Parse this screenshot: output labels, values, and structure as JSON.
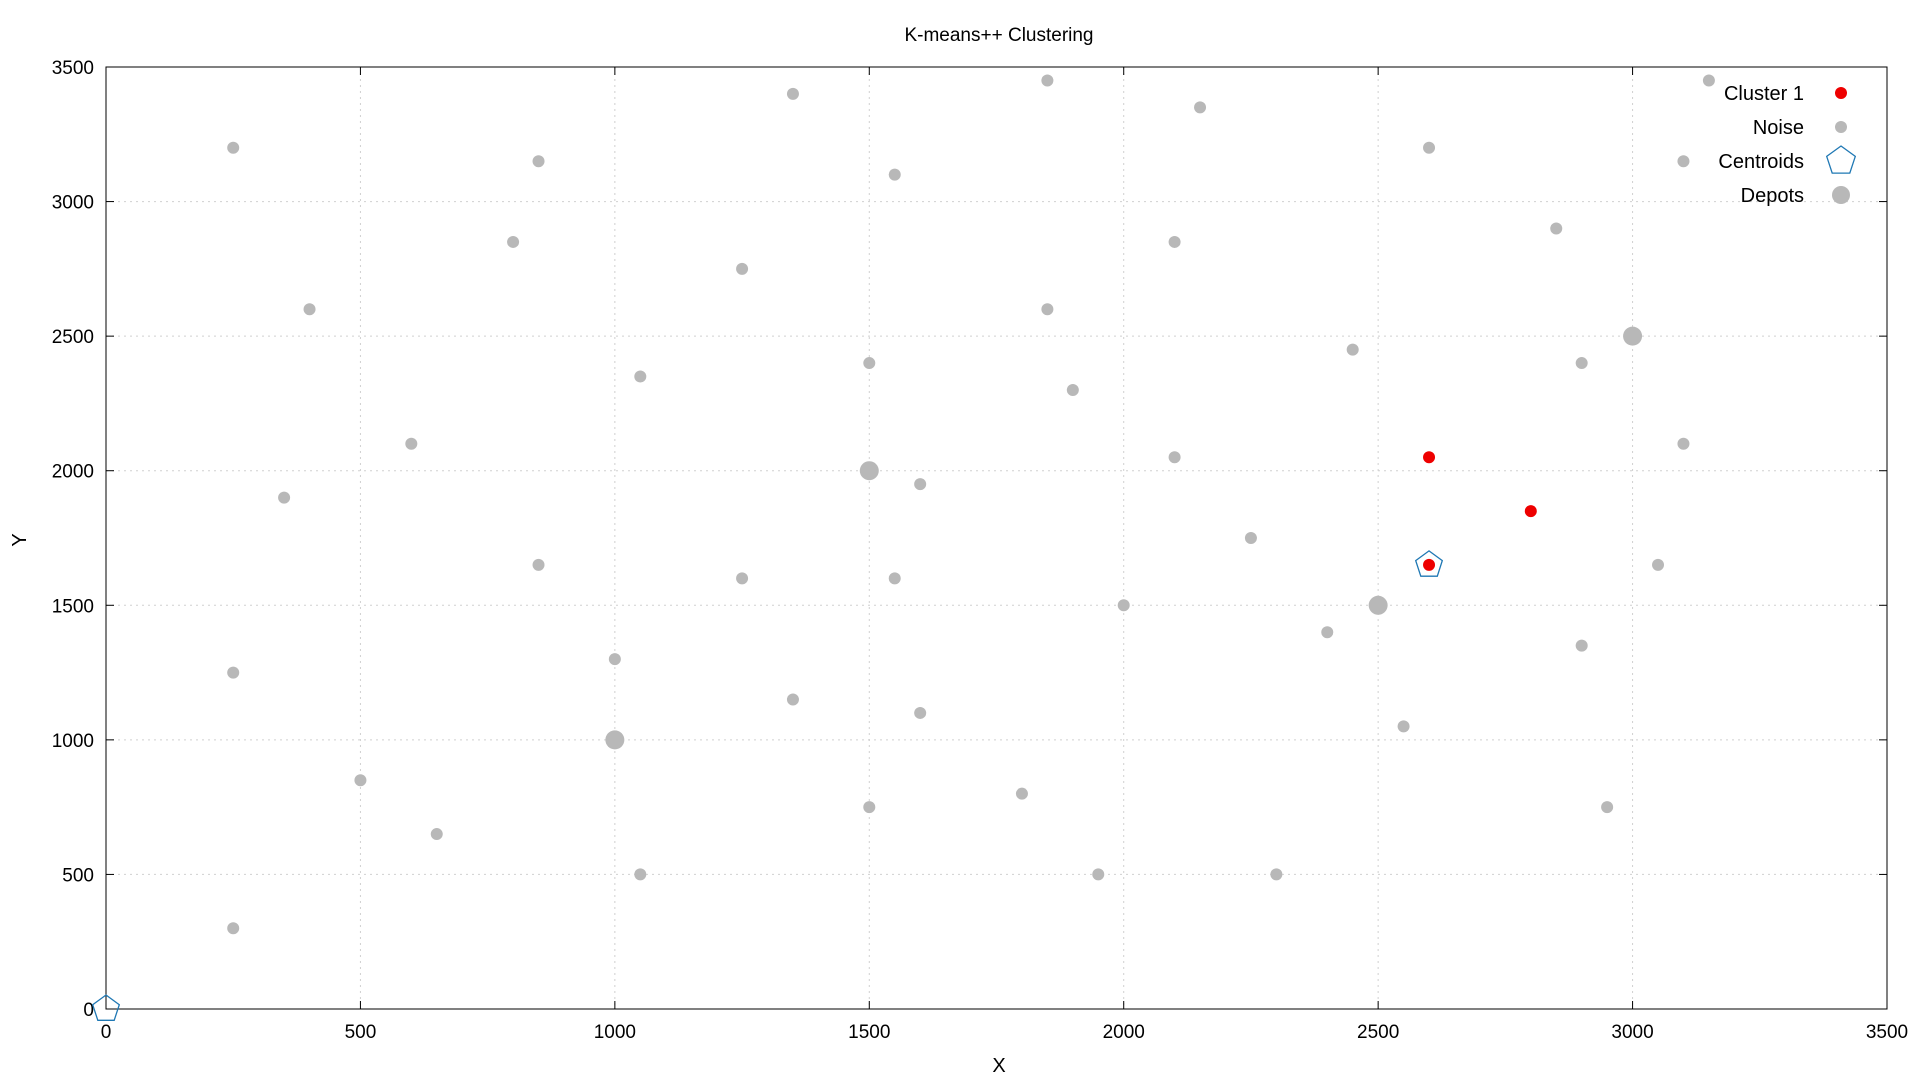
{
  "chart_data": {
    "type": "scatter",
    "title": "K-means++ Clustering",
    "xlabel": "X",
    "ylabel": "Y",
    "xlim": [
      0,
      3500
    ],
    "ylim": [
      0,
      3500
    ],
    "xticks": [
      0,
      500,
      1000,
      1500,
      2000,
      2500,
      3000,
      3500
    ],
    "yticks": [
      0,
      500,
      1000,
      1500,
      2000,
      2500,
      3000,
      3500
    ],
    "grid": true,
    "legend_position": "top-right",
    "colors": {
      "cluster": "#ee0000",
      "noise": "#b8b8b8",
      "centroid": "#1f78b4",
      "depot": "#b8b8b8"
    },
    "series": [
      {
        "name": "Cluster 1",
        "marker": "circle",
        "points": [
          [
            2600,
            2050
          ],
          [
            2800,
            1850
          ],
          [
            2600,
            1650
          ]
        ]
      },
      {
        "name": "Noise",
        "marker": "circle",
        "points": [
          [
            250,
            3200
          ],
          [
            850,
            3150
          ],
          [
            1350,
            3400
          ],
          [
            1550,
            3100
          ],
          [
            1850,
            3450
          ],
          [
            2150,
            3350
          ],
          [
            2600,
            3200
          ],
          [
            3150,
            3450
          ],
          [
            3100,
            3150
          ],
          [
            800,
            2850
          ],
          [
            1250,
            2750
          ],
          [
            2100,
            2850
          ],
          [
            2850,
            2900
          ],
          [
            400,
            2600
          ],
          [
            1850,
            2600
          ],
          [
            1050,
            2350
          ],
          [
            1500,
            2400
          ],
          [
            1900,
            2300
          ],
          [
            2450,
            2450
          ],
          [
            2900,
            2400
          ],
          [
            600,
            2100
          ],
          [
            2100,
            2050
          ],
          [
            3100,
            2100
          ],
          [
            350,
            1900
          ],
          [
            1600,
            1950
          ],
          [
            2250,
            1750
          ],
          [
            850,
            1650
          ],
          [
            1250,
            1600
          ],
          [
            1550,
            1600
          ],
          [
            3050,
            1650
          ],
          [
            2000,
            1500
          ],
          [
            2400,
            1400
          ],
          [
            2900,
            1350
          ],
          [
            250,
            1250
          ],
          [
            1000,
            1300
          ],
          [
            1350,
            1150
          ],
          [
            1600,
            1100
          ],
          [
            2550,
            1050
          ],
          [
            500,
            850
          ],
          [
            650,
            650
          ],
          [
            1500,
            750
          ],
          [
            1800,
            800
          ],
          [
            2950,
            750
          ],
          [
            1050,
            500
          ],
          [
            1950,
            500
          ],
          [
            2300,
            500
          ],
          [
            250,
            300
          ]
        ]
      },
      {
        "name": "Centroids",
        "marker": "pentagon",
        "points": [
          [
            2600,
            1650
          ],
          [
            0,
            0
          ]
        ]
      },
      {
        "name": "Depots",
        "marker": "circle-large",
        "points": [
          [
            1500,
            2000
          ],
          [
            2500,
            1500
          ],
          [
            1000,
            1000
          ],
          [
            3000,
            2500
          ]
        ]
      }
    ]
  }
}
